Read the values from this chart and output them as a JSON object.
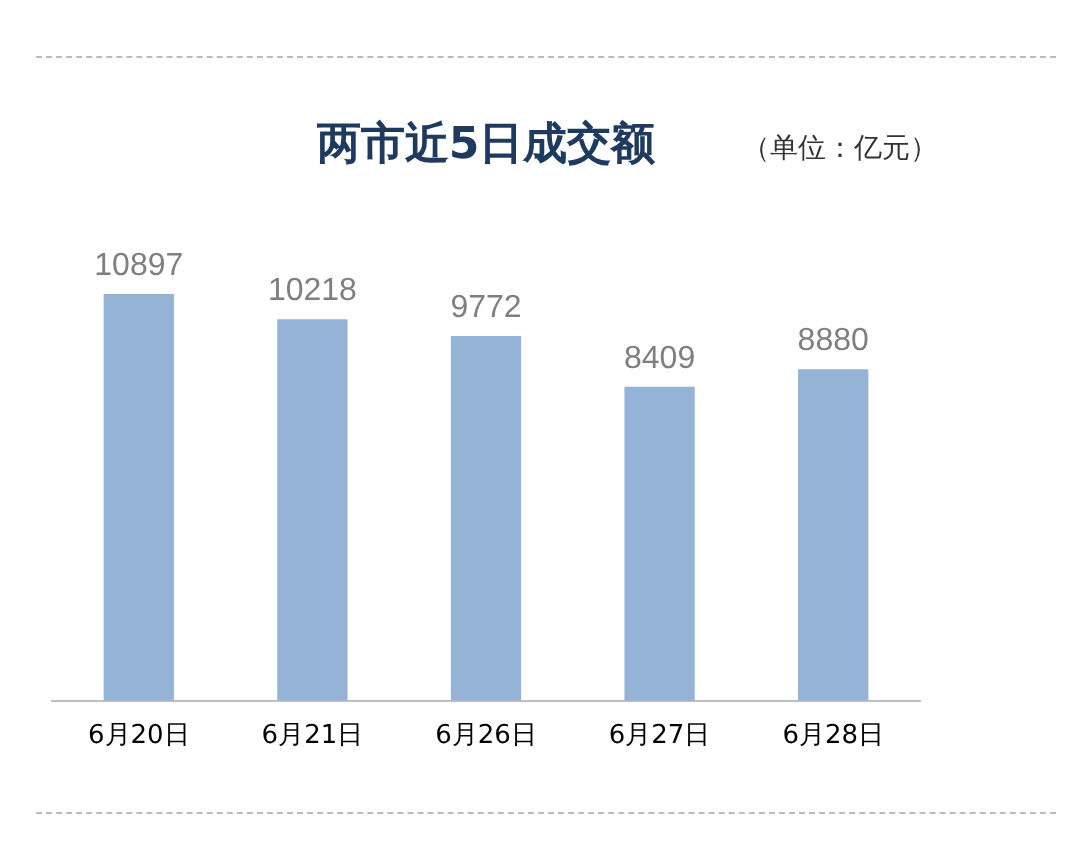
{
  "chart_data": {
    "type": "bar",
    "title": "两市近5日成交额",
    "annotations": [
      "（单位：亿元）"
    ],
    "categories": [
      "6月20日",
      "6月21日",
      "6月26日",
      "6月27日",
      "6月28日"
    ],
    "values": [
      10897,
      10218,
      9772,
      8409,
      8880
    ],
    "color": "#95b3d7",
    "data_labels": true,
    "grid": false,
    "legend": false,
    "tick_labels": "x"
  }
}
